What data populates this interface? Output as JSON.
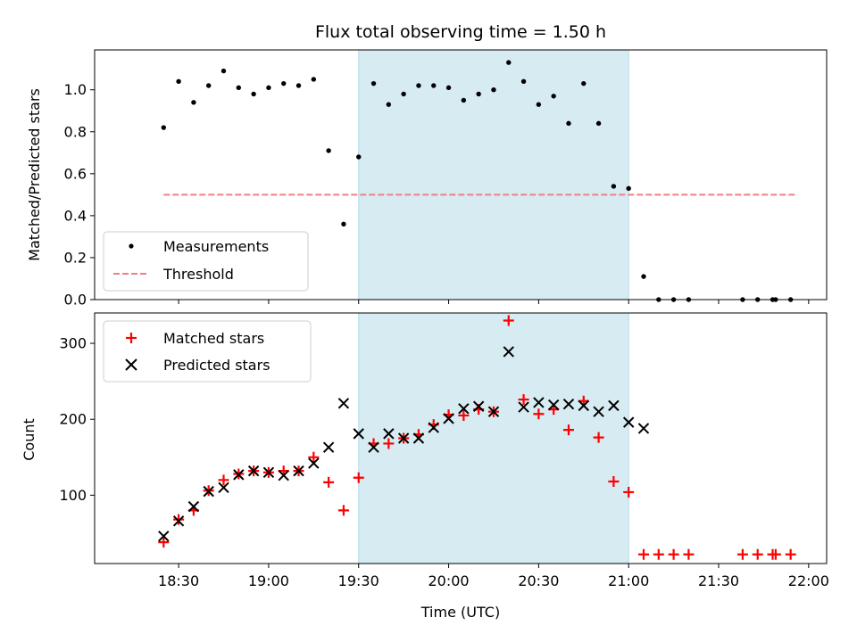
{
  "chart_data": [
    {
      "type": "scatter",
      "title": "Flux total observing time = 1.50 h",
      "xlabel": "",
      "ylabel": "Matched/Predicted stars",
      "ylim": [
        0,
        1.19
      ],
      "yticks": [
        "0.0",
        "0.2",
        "0.4",
        "0.6",
        "0.8",
        "1.0"
      ],
      "xlim_minutes": [
        1082,
        1326
      ],
      "highlight_span": [
        "19:30",
        "21:00"
      ],
      "legend_position": "lower-left",
      "series": [
        {
          "name": "Measurements",
          "marker": "dot",
          "color": "#000000",
          "x": [
            "18:25",
            "18:30",
            "18:35",
            "18:40",
            "18:45",
            "18:50",
            "18:55",
            "19:00",
            "19:05",
            "19:10",
            "19:15",
            "19:20",
            "19:25",
            "19:30",
            "19:35",
            "19:40",
            "19:45",
            "19:50",
            "19:55",
            "20:00",
            "20:05",
            "20:10",
            "20:15",
            "20:20",
            "20:25",
            "20:30",
            "20:35",
            "20:40",
            "20:45",
            "20:50",
            "20:55",
            "21:00",
            "21:05",
            "21:10",
            "21:15",
            "21:20",
            "21:38",
            "21:43",
            "21:48",
            "21:49",
            "21:54"
          ],
          "y": [
            0.82,
            1.04,
            0.94,
            1.02,
            1.09,
            1.01,
            0.98,
            1.01,
            1.03,
            1.02,
            1.05,
            0.71,
            0.36,
            0.68,
            1.03,
            0.93,
            0.98,
            1.02,
            1.02,
            1.01,
            0.95,
            0.98,
            1.0,
            1.13,
            1.04,
            0.93,
            0.97,
            0.84,
            1.03,
            0.84,
            0.54,
            0.53,
            0.11,
            0,
            0,
            0,
            0,
            0,
            0,
            0,
            0
          ]
        },
        {
          "name": "Threshold",
          "style": "dashed",
          "color": "#f08080",
          "x": [
            "18:25",
            "21:56"
          ],
          "y": [
            0.5,
            0.5
          ]
        }
      ]
    },
    {
      "type": "scatter",
      "xlabel": "Time (UTC)",
      "ylabel": "Count",
      "ylim": [
        10,
        340
      ],
      "yticks": [
        "100",
        "200",
        "300"
      ],
      "xticks": [
        "18:30",
        "19:00",
        "19:30",
        "20:00",
        "20:30",
        "21:00",
        "21:30",
        "22:00"
      ],
      "xlim_minutes": [
        1082,
        1326
      ],
      "highlight_span": [
        "19:30",
        "21:00"
      ],
      "legend_position": "upper-left",
      "series": [
        {
          "name": "Matched stars",
          "marker": "plus",
          "color": "#ff0000",
          "x": [
            "18:25",
            "18:30",
            "18:35",
            "18:40",
            "18:45",
            "18:50",
            "18:55",
            "19:00",
            "19:05",
            "19:10",
            "19:15",
            "19:20",
            "19:25",
            "19:30",
            "19:35",
            "19:40",
            "19:45",
            "19:50",
            "19:55",
            "20:00",
            "20:05",
            "20:10",
            "20:15",
            "20:20",
            "20:25",
            "20:30",
            "20:35",
            "20:40",
            "20:45",
            "20:50",
            "20:55",
            "21:00",
            "21:05",
            "21:10",
            "21:15",
            "21:20",
            "21:38",
            "21:43",
            "21:48",
            "21:49",
            "21:54"
          ],
          "y": [
            38,
            68,
            80,
            106,
            120,
            128,
            132,
            130,
            132,
            132,
            150,
            117,
            80,
            123,
            168,
            168,
            175,
            180,
            193,
            206,
            205,
            213,
            210,
            330,
            226,
            207,
            213,
            186,
            224,
            176,
            118,
            104,
            22,
            22,
            22,
            22,
            22,
            22,
            22,
            22,
            22
          ]
        },
        {
          "name": "Predicted stars",
          "marker": "x",
          "color": "#000000",
          "x": [
            "18:25",
            "18:30",
            "18:35",
            "18:40",
            "18:45",
            "18:50",
            "18:55",
            "19:00",
            "19:05",
            "19:10",
            "19:15",
            "19:20",
            "19:25",
            "19:30",
            "19:35",
            "19:40",
            "19:45",
            "19:50",
            "19:55",
            "20:00",
            "20:05",
            "20:10",
            "20:15",
            "20:20",
            "20:25",
            "20:30",
            "20:35",
            "20:40",
            "20:45",
            "20:50",
            "20:55",
            "21:00",
            "21:05"
          ],
          "y": [
            46,
            66,
            85,
            105,
            110,
            127,
            132,
            130,
            126,
            132,
            142,
            163,
            221,
            181,
            163,
            181,
            175,
            175,
            189,
            201,
            214,
            217,
            210,
            289,
            216,
            222,
            219,
            220,
            218,
            210,
            218,
            196,
            188
          ]
        }
      ]
    }
  ]
}
